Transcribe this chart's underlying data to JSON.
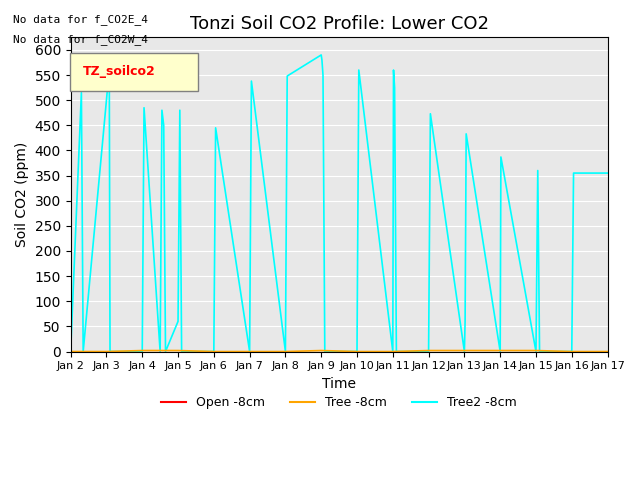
{
  "title": "Tonzi Soil CO2 Profile: Lower CO2",
  "ylabel": "Soil CO2 (ppm)",
  "xlabel": "Time",
  "ylim": [
    0,
    625
  ],
  "yticks": [
    0,
    50,
    100,
    150,
    200,
    250,
    300,
    350,
    400,
    450,
    500,
    550,
    600
  ],
  "bg_color": "#e8e8e8",
  "notes": [
    "No data for f_CO2E_4",
    "No data for f_CO2W_4"
  ],
  "legend_box_label": "TZ_soilco2",
  "legend_entries": [
    "Open ₌m",
    "Tree ₌m",
    "Tree2 ₌m"
  ],
  "legend_colors": [
    "#ff0000",
    "#ffa500",
    "#00ffff"
  ],
  "open_color": "#ff0000",
  "tree_color": "#ffa500",
  "tree2_color": "#00ffff",
  "tree2_data": {
    "times": [
      2.0,
      2.3,
      2.35,
      3.0,
      3.05,
      3.08,
      3.1,
      3.15,
      4.0,
      4.05,
      4.5,
      4.55,
      4.6,
      4.65,
      5.0,
      5.05,
      5.1,
      6.0,
      6.05,
      7.0,
      7.05,
      8.0,
      8.05,
      9.0,
      9.02,
      9.05,
      9.1,
      9.2,
      10.0,
      10.05,
      11.0,
      11.02,
      11.05,
      11.1,
      12.0,
      12.05,
      13.0,
      13.02,
      13.05,
      14.0,
      14.02,
      15.0,
      15.05,
      15.1,
      16.0,
      16.05,
      17.0
    ],
    "values": [
      0,
      515,
      0,
      500,
      540,
      535,
      0,
      0,
      0,
      485,
      0,
      480,
      450,
      0,
      60,
      480,
      0,
      0,
      445,
      0,
      538,
      0,
      548,
      590,
      580,
      550,
      0,
      0,
      0,
      560,
      0,
      560,
      525,
      0,
      0,
      473,
      0,
      60,
      433,
      0,
      387,
      0,
      360,
      0,
      0,
      355,
      355
    ]
  },
  "tree_data": {
    "times": [
      2.0,
      3.0,
      4.0,
      5.0,
      6.0,
      7.0,
      8.0,
      9.0,
      10.0,
      11.0,
      12.0,
      13.0,
      14.0,
      15.0,
      16.0,
      17.0
    ],
    "values": [
      0,
      0,
      2,
      2,
      0,
      0,
      0,
      2,
      0,
      0,
      2,
      2,
      2,
      2,
      0,
      0
    ]
  },
  "xstart": 2,
  "xend": 17,
  "xtick_positions": [
    2,
    3,
    4,
    5,
    6,
    7,
    8,
    9,
    10,
    11,
    12,
    13,
    14,
    15,
    16,
    17
  ],
  "xtick_labels": [
    "Jan 2",
    "Jan 3",
    "Jan 4",
    "Jan 5",
    "Jan 6",
    "Jan 7",
    "Jan 8",
    "Jan 9",
    "Jan 10",
    "Jan 11",
    "Jan 12",
    "Jan 13",
    "Jan 14",
    "Jan 15",
    "Jan 16",
    "Jan 17"
  ]
}
